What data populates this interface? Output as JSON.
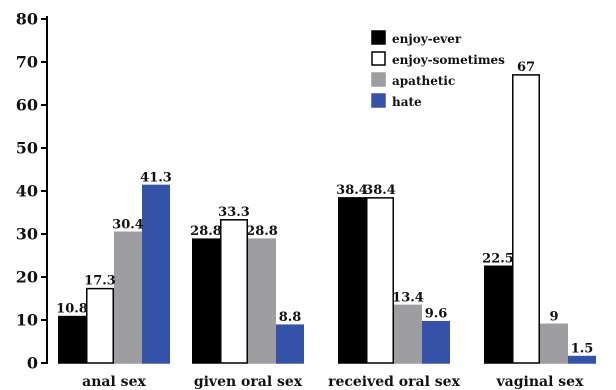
{
  "chart_data": {
    "type": "bar",
    "title": "",
    "xlabel": "",
    "ylabel": "",
    "ylim": [
      0,
      80
    ],
    "yticks": [
      0,
      10,
      20,
      30,
      40,
      50,
      60,
      70,
      80
    ],
    "grid": false,
    "legend_position": "top-right",
    "categories": [
      "anal sex",
      "given oral sex",
      "received oral sex",
      "vaginal sex"
    ],
    "series": [
      {
        "name": "enjoy-ever",
        "color": "#000000",
        "values": [
          10.8,
          28.8,
          38.4,
          22.5
        ],
        "labels": [
          "10.8",
          "28.8",
          "38.4",
          "22.5"
        ]
      },
      {
        "name": "enjoy-sometimes",
        "color": "#ffffff",
        "values": [
          17.3,
          33.3,
          38.4,
          67
        ],
        "labels": [
          "17.3",
          "33.3",
          "38.4",
          "67"
        ]
      },
      {
        "name": "apathetic",
        "color": "#9d9da2",
        "values": [
          30.4,
          28.8,
          13.4,
          9
        ],
        "labels": [
          "30.4",
          "28.8",
          "13.4",
          "9"
        ]
      },
      {
        "name": "hate",
        "color": "#3552a8",
        "values": [
          41.3,
          8.8,
          9.6,
          1.5
        ],
        "labels": [
          "41.3",
          "8.8",
          "9.6",
          "1.5"
        ]
      }
    ]
  }
}
